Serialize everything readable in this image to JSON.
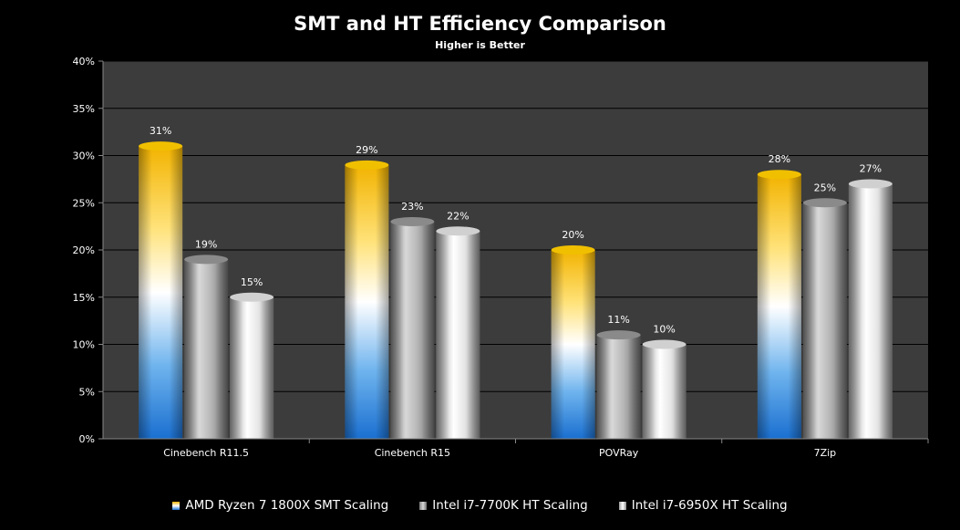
{
  "chart_data": {
    "type": "bar",
    "title": "SMT and HT Efficiency Comparison",
    "subtitle": "Higher is Better",
    "categories": [
      "Cinebench R11.5",
      "Cinebench R15",
      "POVRay",
      "7Zip"
    ],
    "series": [
      {
        "name": "AMD Ryzen 7 1800X SMT Scaling",
        "values": [
          31,
          29,
          20,
          28
        ],
        "labels": [
          "31%",
          "29%",
          "20%",
          "28%"
        ]
      },
      {
        "name": "Intel i7-7700K HT Scaling",
        "values": [
          19,
          23,
          11,
          25
        ],
        "labels": [
          "19%",
          "23%",
          "11%",
          "25%"
        ]
      },
      {
        "name": "Intel i7-6950X HT Scaling",
        "values": [
          15,
          22,
          10,
          27
        ],
        "labels": [
          "15%",
          "22%",
          "10%",
          "27%"
        ]
      }
    ],
    "yticks": [
      "0%",
      "5%",
      "10%",
      "15%",
      "20%",
      "25%",
      "30%",
      "35%",
      "40%"
    ],
    "ylim": [
      0,
      40
    ],
    "grid": true,
    "legend": "bottom"
  }
}
